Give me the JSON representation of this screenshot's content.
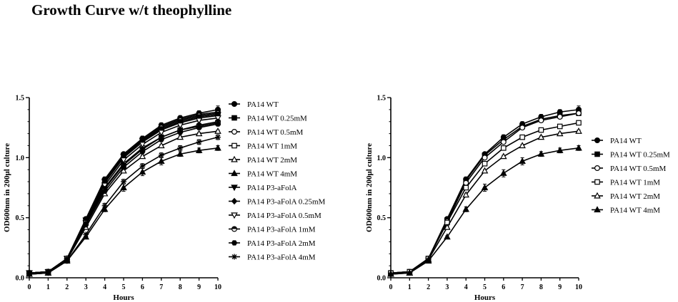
{
  "title": "Growth Curve w/t theophylline",
  "chart_data": [
    {
      "type": "line",
      "xlabel": "Hours",
      "ylabel": "OD600nm in 200μl culture",
      "xlim": [
        0,
        10
      ],
      "ylim": [
        0,
        1.5
      ],
      "xticks": [
        "0",
        "1",
        "2",
        "3",
        "4",
        "5",
        "6",
        "7",
        "8",
        "9",
        "10"
      ],
      "yticks": [
        "0.0",
        "0.5",
        "1.0",
        "1.5"
      ],
      "legend_position": "right",
      "x": [
        0,
        1,
        2,
        3,
        4,
        5,
        6,
        7,
        8,
        9,
        10
      ],
      "series": [
        {
          "name": "PA14 WT",
          "marker": "filled-circle",
          "values": [
            0.04,
            0.05,
            0.16,
            0.49,
            0.82,
            1.03,
            1.16,
            1.27,
            1.33,
            1.37,
            1.4
          ],
          "err": [
            0.02,
            0.01,
            0.01,
            0.01,
            0.02,
            0.01,
            0.02,
            0.02,
            0.02,
            0.02,
            0.03
          ]
        },
        {
          "name": "PA14 WT 0.25mM",
          "marker": "filled-square",
          "values": [
            0.04,
            0.05,
            0.16,
            0.48,
            0.81,
            1.02,
            1.15,
            1.26,
            1.32,
            1.36,
            1.38
          ],
          "err": [
            0.01,
            0.01,
            0.01,
            0.01,
            0.01,
            0.01,
            0.01,
            0.01,
            0.01,
            0.02,
            0.02
          ]
        },
        {
          "name": "PA14 WT 0.5mM",
          "marker": "open-circle",
          "values": [
            0.04,
            0.05,
            0.16,
            0.47,
            0.79,
            1.0,
            1.14,
            1.25,
            1.31,
            1.35,
            1.37
          ],
          "err": [
            0.01,
            0.01,
            0.01,
            0.01,
            0.01,
            0.01,
            0.01,
            0.01,
            0.01,
            0.01,
            0.02
          ]
        },
        {
          "name": "PA14 WT 1mM",
          "marker": "open-square",
          "values": [
            0.04,
            0.05,
            0.16,
            0.46,
            0.75,
            0.95,
            1.08,
            1.17,
            1.23,
            1.26,
            1.29
          ],
          "err": [
            0.01,
            0.01,
            0.01,
            0.01,
            0.01,
            0.01,
            0.01,
            0.01,
            0.01,
            0.01,
            0.01
          ]
        },
        {
          "name": "PA14 WT 2mM",
          "marker": "open-triangle",
          "values": [
            0.03,
            0.04,
            0.15,
            0.42,
            0.7,
            0.89,
            1.01,
            1.1,
            1.17,
            1.2,
            1.22
          ],
          "err": [
            0.01,
            0.01,
            0.01,
            0.01,
            0.01,
            0.01,
            0.01,
            0.01,
            0.01,
            0.01,
            0.01
          ]
        },
        {
          "name": "PA14 WT 4mM",
          "marker": "filled-triangle",
          "values": [
            0.03,
            0.04,
            0.14,
            0.34,
            0.57,
            0.75,
            0.88,
            0.97,
            1.03,
            1.06,
            1.08
          ],
          "err": [
            0.01,
            0.01,
            0.01,
            0.01,
            0.02,
            0.03,
            0.03,
            0.03,
            0.02,
            0.02,
            0.02
          ]
        },
        {
          "name": "PA14 P3-aFolA",
          "marker": "filled-down-triangle",
          "values": [
            0.04,
            0.05,
            0.16,
            0.48,
            0.8,
            1.01,
            1.14,
            1.24,
            1.3,
            1.34,
            1.36
          ],
          "err": [
            0.01,
            0.01,
            0.01,
            0.01,
            0.01,
            0.01,
            0.01,
            0.01,
            0.01,
            0.01,
            0.02
          ]
        },
        {
          "name": "PA14 P3-aFolA 0.25mM",
          "marker": "filled-diamond",
          "values": [
            0.04,
            0.05,
            0.16,
            0.47,
            0.79,
            1.0,
            1.13,
            1.23,
            1.29,
            1.33,
            1.35
          ],
          "err": [
            0.01,
            0.01,
            0.01,
            0.01,
            0.01,
            0.01,
            0.01,
            0.01,
            0.01,
            0.01,
            0.02
          ]
        },
        {
          "name": "PA14 P3-aFolA 0.5mM",
          "marker": "open-down-triangle",
          "values": [
            0.04,
            0.05,
            0.16,
            0.46,
            0.77,
            0.98,
            1.11,
            1.21,
            1.27,
            1.31,
            1.33
          ],
          "err": [
            0.01,
            0.01,
            0.01,
            0.01,
            0.01,
            0.01,
            0.01,
            0.01,
            0.01,
            0.01,
            0.02
          ]
        },
        {
          "name": "PA14 P3-aFolA 1mM",
          "marker": "half-filled-circle",
          "values": [
            0.04,
            0.05,
            0.15,
            0.45,
            0.74,
            0.94,
            1.07,
            1.17,
            1.23,
            1.27,
            1.3
          ],
          "err": [
            0.01,
            0.01,
            0.01,
            0.01,
            0.01,
            0.01,
            0.01,
            0.01,
            0.01,
            0.01,
            0.01
          ]
        },
        {
          "name": "PA14 P3-aFolA 2mM",
          "marker": "filled-hexagon",
          "values": [
            0.04,
            0.05,
            0.15,
            0.44,
            0.72,
            0.92,
            1.05,
            1.15,
            1.21,
            1.25,
            1.28
          ],
          "err": [
            0.01,
            0.01,
            0.01,
            0.01,
            0.01,
            0.01,
            0.01,
            0.01,
            0.01,
            0.01,
            0.01
          ]
        },
        {
          "name": "PA14 P3-aFolA 4mM",
          "marker": "star",
          "values": [
            0.03,
            0.04,
            0.14,
            0.36,
            0.6,
            0.8,
            0.93,
            1.02,
            1.08,
            1.13,
            1.17
          ],
          "err": [
            0.01,
            0.01,
            0.01,
            0.01,
            0.02,
            0.02,
            0.02,
            0.02,
            0.02,
            0.02,
            0.02
          ]
        }
      ]
    },
    {
      "type": "line",
      "xlabel": "Hours",
      "ylabel": "OD600nm in 200μl culture",
      "xlim": [
        0,
        10
      ],
      "ylim": [
        0,
        1.5
      ],
      "xticks": [
        "0",
        "1",
        "2",
        "3",
        "4",
        "5",
        "6",
        "7",
        "8",
        "9",
        "10"
      ],
      "yticks": [
        "0.0",
        "0.5",
        "1.0",
        "1.5"
      ],
      "legend_position": "right",
      "x": [
        0,
        1,
        2,
        3,
        4,
        5,
        6,
        7,
        8,
        9,
        10
      ],
      "series": [
        {
          "name": "PA14 WT",
          "marker": "filled-circle",
          "values": [
            0.04,
            0.05,
            0.16,
            0.49,
            0.82,
            1.03,
            1.17,
            1.28,
            1.34,
            1.38,
            1.4
          ],
          "err": [
            0.02,
            0.01,
            0.01,
            0.01,
            0.02,
            0.01,
            0.02,
            0.02,
            0.02,
            0.02,
            0.03
          ]
        },
        {
          "name": "PA14 WT 0.25mM",
          "marker": "filled-square",
          "values": [
            0.04,
            0.05,
            0.16,
            0.48,
            0.81,
            1.02,
            1.15,
            1.26,
            1.32,
            1.35,
            1.37
          ],
          "err": [
            0.01,
            0.01,
            0.01,
            0.01,
            0.01,
            0.01,
            0.01,
            0.01,
            0.01,
            0.02,
            0.02
          ]
        },
        {
          "name": "PA14 WT 0.5mM",
          "marker": "open-circle",
          "values": [
            0.04,
            0.05,
            0.16,
            0.47,
            0.79,
            1.0,
            1.13,
            1.25,
            1.31,
            1.34,
            1.37
          ],
          "err": [
            0.01,
            0.01,
            0.01,
            0.01,
            0.01,
            0.01,
            0.01,
            0.01,
            0.01,
            0.01,
            0.02
          ]
        },
        {
          "name": "PA14 WT 1mM",
          "marker": "open-square",
          "values": [
            0.04,
            0.05,
            0.16,
            0.46,
            0.75,
            0.95,
            1.08,
            1.17,
            1.23,
            1.26,
            1.29
          ],
          "err": [
            0.01,
            0.01,
            0.01,
            0.01,
            0.01,
            0.01,
            0.01,
            0.01,
            0.01,
            0.01,
            0.01
          ]
        },
        {
          "name": "PA14 WT 2mM",
          "marker": "open-triangle",
          "values": [
            0.03,
            0.04,
            0.15,
            0.42,
            0.69,
            0.89,
            1.01,
            1.1,
            1.17,
            1.2,
            1.22
          ],
          "err": [
            0.01,
            0.01,
            0.01,
            0.01,
            0.01,
            0.01,
            0.01,
            0.01,
            0.01,
            0.01,
            0.01
          ]
        },
        {
          "name": "PA14 WT 4mM",
          "marker": "filled-triangle",
          "values": [
            0.03,
            0.04,
            0.14,
            0.34,
            0.57,
            0.75,
            0.87,
            0.97,
            1.03,
            1.06,
            1.08
          ],
          "err": [
            0.01,
            0.01,
            0.01,
            0.01,
            0.02,
            0.03,
            0.03,
            0.03,
            0.02,
            0.02,
            0.02
          ]
        }
      ]
    }
  ]
}
